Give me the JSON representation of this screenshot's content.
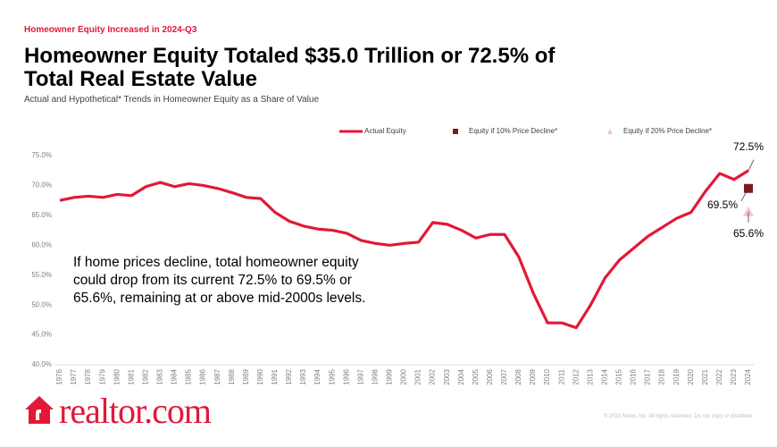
{
  "chart_data": {
    "type": "line",
    "kicker": "Homeowner Equity Increased in 2024-Q3",
    "title": "Homeowner Equity Totaled $35.0 Trillion or 72.5% of Total Real Estate Value",
    "subtitle": "Actual and Hypothetical* Trends in Homeowner Equity as a Share of Value",
    "annotation": "If home prices decline, total homeowner equity could drop from its current 72.5% to 69.5% or 65.6%, remaining at or above mid-2000s levels.",
    "categories": [
      "1976",
      "1977",
      "1978",
      "1979",
      "1980",
      "1981",
      "1982",
      "1983",
      "1984",
      "1985",
      "1986",
      "1987",
      "1988",
      "1989",
      "1990",
      "1991",
      "1992",
      "1993",
      "1994",
      "1995",
      "1996",
      "1997",
      "1998",
      "1999",
      "2000",
      "2001",
      "2002",
      "2003",
      "2004",
      "2005",
      "2006",
      "2007",
      "2008",
      "2009",
      "2010",
      "2011",
      "2012",
      "2013",
      "2014",
      "2015",
      "2016",
      "2017",
      "2018",
      "2019",
      "2020",
      "2021",
      "2022",
      "2023",
      "2024"
    ],
    "series": [
      {
        "name": "Actual Equity",
        "color": "#e31837",
        "marker": "line",
        "values": [
          67.5,
          68.0,
          68.2,
          68.0,
          68.5,
          68.3,
          69.8,
          70.5,
          69.8,
          70.3,
          70.0,
          69.5,
          68.8,
          68.0,
          67.8,
          65.5,
          64.0,
          63.2,
          62.7,
          62.5,
          62.0,
          60.8,
          60.3,
          60.0,
          60.3,
          60.5,
          63.8,
          63.5,
          62.5,
          61.2,
          61.8,
          61.8,
          58.0,
          52.0,
          47.0,
          47.0,
          46.2,
          50.0,
          54.5,
          57.5,
          59.5,
          61.5,
          63.0,
          64.5,
          65.5,
          69.0,
          72.0,
          71.0,
          72.5
        ],
        "value_labels": [
          null,
          null,
          null,
          null,
          null,
          null,
          null,
          null,
          null,
          null,
          null,
          null,
          null,
          null,
          null,
          null,
          null,
          null,
          null,
          null,
          null,
          null,
          null,
          null,
          null,
          null,
          null,
          null,
          null,
          null,
          null,
          null,
          null,
          null,
          null,
          null,
          null,
          null,
          null,
          null,
          null,
          null,
          null,
          null,
          null,
          null,
          null,
          null,
          "72.5%"
        ]
      },
      {
        "name": "Equity if 10% Price Decline*",
        "color": "#7b1c1c",
        "marker": "square",
        "values": [
          null,
          null,
          null,
          null,
          null,
          null,
          null,
          null,
          null,
          null,
          null,
          null,
          null,
          null,
          null,
          null,
          null,
          null,
          null,
          null,
          null,
          null,
          null,
          null,
          null,
          null,
          null,
          null,
          null,
          null,
          null,
          null,
          null,
          null,
          null,
          null,
          null,
          null,
          null,
          null,
          null,
          null,
          null,
          null,
          null,
          null,
          null,
          null,
          69.5
        ],
        "value_labels": [
          null,
          null,
          null,
          null,
          null,
          null,
          null,
          null,
          null,
          null,
          null,
          null,
          null,
          null,
          null,
          null,
          null,
          null,
          null,
          null,
          null,
          null,
          null,
          null,
          null,
          null,
          null,
          null,
          null,
          null,
          null,
          null,
          null,
          null,
          null,
          null,
          null,
          null,
          null,
          null,
          null,
          null,
          null,
          null,
          null,
          null,
          null,
          null,
          "69.5%"
        ]
      },
      {
        "name": "Equity if 20% Price Decline*",
        "color": "#f5c6cc",
        "marker": "triangle",
        "values": [
          null,
          null,
          null,
          null,
          null,
          null,
          null,
          null,
          null,
          null,
          null,
          null,
          null,
          null,
          null,
          null,
          null,
          null,
          null,
          null,
          null,
          null,
          null,
          null,
          null,
          null,
          null,
          null,
          null,
          null,
          null,
          null,
          null,
          null,
          null,
          null,
          null,
          null,
          null,
          null,
          null,
          null,
          null,
          null,
          null,
          null,
          null,
          null,
          65.6
        ],
        "value_labels": [
          null,
          null,
          null,
          null,
          null,
          null,
          null,
          null,
          null,
          null,
          null,
          null,
          null,
          null,
          null,
          null,
          null,
          null,
          null,
          null,
          null,
          null,
          null,
          null,
          null,
          null,
          null,
          null,
          null,
          null,
          null,
          null,
          null,
          null,
          null,
          null,
          null,
          null,
          null,
          null,
          null,
          null,
          null,
          null,
          null,
          null,
          null,
          null,
          "65.6%"
        ]
      }
    ],
    "ylim": [
      40,
      75
    ],
    "yticks": [
      {
        "value": 40,
        "label": "40.0%"
      },
      {
        "value": 45,
        "label": "45.0%"
      },
      {
        "value": 50,
        "label": "50.0%"
      },
      {
        "value": 55,
        "label": "55.0%"
      },
      {
        "value": 60,
        "label": "60.0%"
      },
      {
        "value": 65,
        "label": "65.0%"
      },
      {
        "value": 70,
        "label": "70.0%"
      },
      {
        "value": 75,
        "label": "75.0%"
      }
    ],
    "grid": false,
    "legend": "top",
    "logo": "realtor.com",
    "footer": "© 2022 Move, Inc. All rights reserved. Do not copy or distribute."
  }
}
